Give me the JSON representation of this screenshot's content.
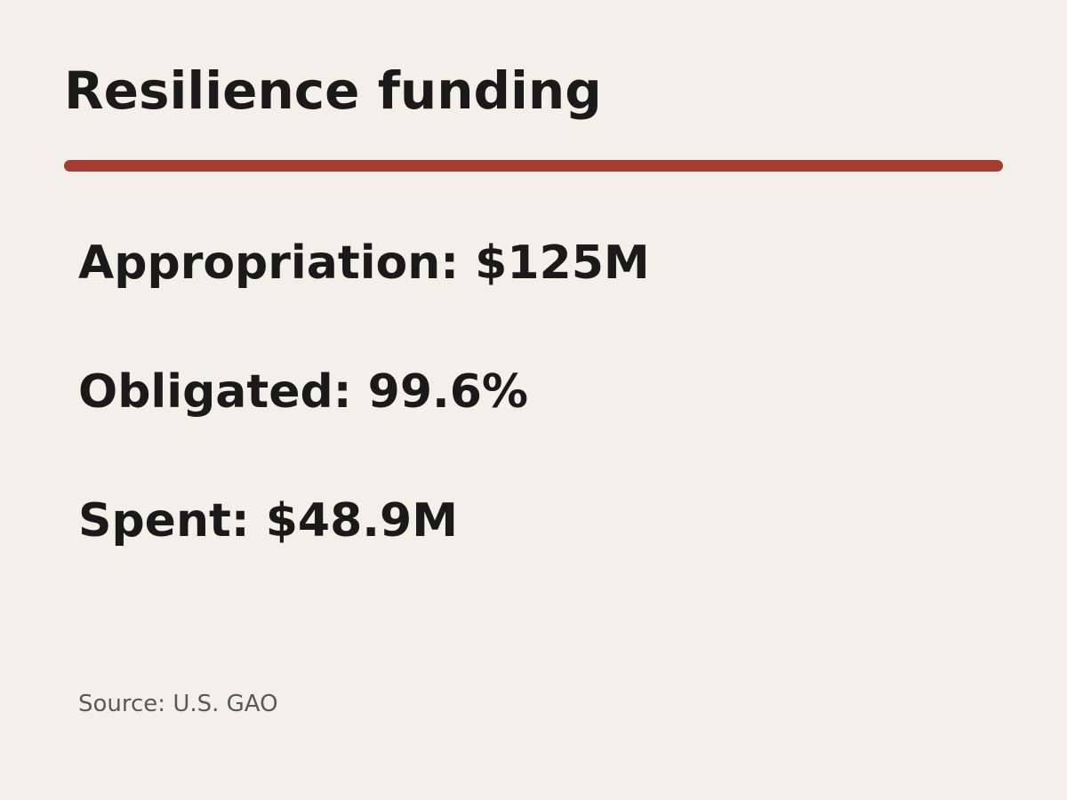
{
  "title": "Resilience funding",
  "items": [
    "Appropriation: $125M",
    "Obligated: 99.6%",
    "Spent: $48.9M"
  ],
  "source": "Source: U.S. GAO"
}
